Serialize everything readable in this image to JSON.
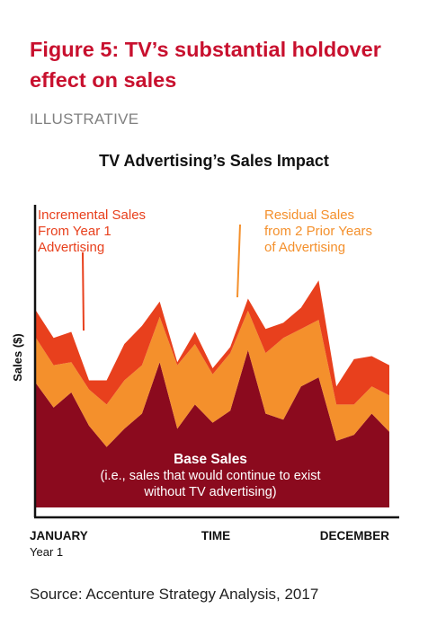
{
  "figure": {
    "title": "Figure 5: TV’s substantial holdover effect on sales",
    "subtitle": "ILLUSTRATIVE",
    "source": "Source: Accenture Strategy Analysis, 2017"
  },
  "chart_data": {
    "type": "area",
    "stacked": true,
    "title": "TV Advertising’s Sales Impact",
    "ylabel": "Sales ($)",
    "xlabel": "TIME",
    "x_ticks": [
      {
        "label": "JANUARY",
        "sublabel": "Year 1"
      },
      {
        "label": "TIME",
        "sublabel": ""
      },
      {
        "label": "DECEMBER",
        "sublabel": ""
      }
    ],
    "x": [
      0,
      1,
      2,
      3,
      4,
      5,
      6,
      7,
      8,
      9,
      10,
      11,
      12,
      13,
      14,
      15,
      16,
      17,
      18,
      19,
      20
    ],
    "ylim": [
      0,
      100
    ],
    "series": [
      {
        "name": "Base Sales",
        "color": "#8b0a1e",
        "values": [
          41,
          33,
          38,
          27,
          20,
          26,
          31,
          48,
          26,
          34,
          28,
          32,
          52,
          31,
          29,
          40,
          43,
          22,
          24,
          31,
          25
        ]
      },
      {
        "name": "Residual Sales from 2 Prior Years of Advertising",
        "color": "#f4902c",
        "values": [
          15,
          14,
          10,
          12,
          14,
          16,
          16,
          15,
          21,
          20,
          16,
          19,
          13,
          20,
          27,
          19,
          19,
          12,
          10,
          9,
          12
        ]
      },
      {
        "name": "Incremental Sales From Year 1 Advertising",
        "color": "#e8401d",
        "values": [
          9,
          9,
          10,
          3,
          8,
          12,
          13,
          5,
          1,
          4,
          2,
          2,
          4,
          8,
          5,
          7,
          13,
          6,
          15,
          10,
          10
        ]
      }
    ],
    "annotations": {
      "incremental": [
        "Incremental Sales",
        "From Year 1",
        "Advertising"
      ],
      "residual": [
        "Residual Sales",
        "from 2 Prior Years",
        "of Advertising"
      ],
      "base": [
        "Base Sales",
        "(i.e., sales that would continue to exist",
        "without TV advertising)"
      ]
    },
    "colors": {
      "incremental_text": "#e8401d",
      "residual_text": "#f4902c",
      "axis": "#111111"
    }
  }
}
